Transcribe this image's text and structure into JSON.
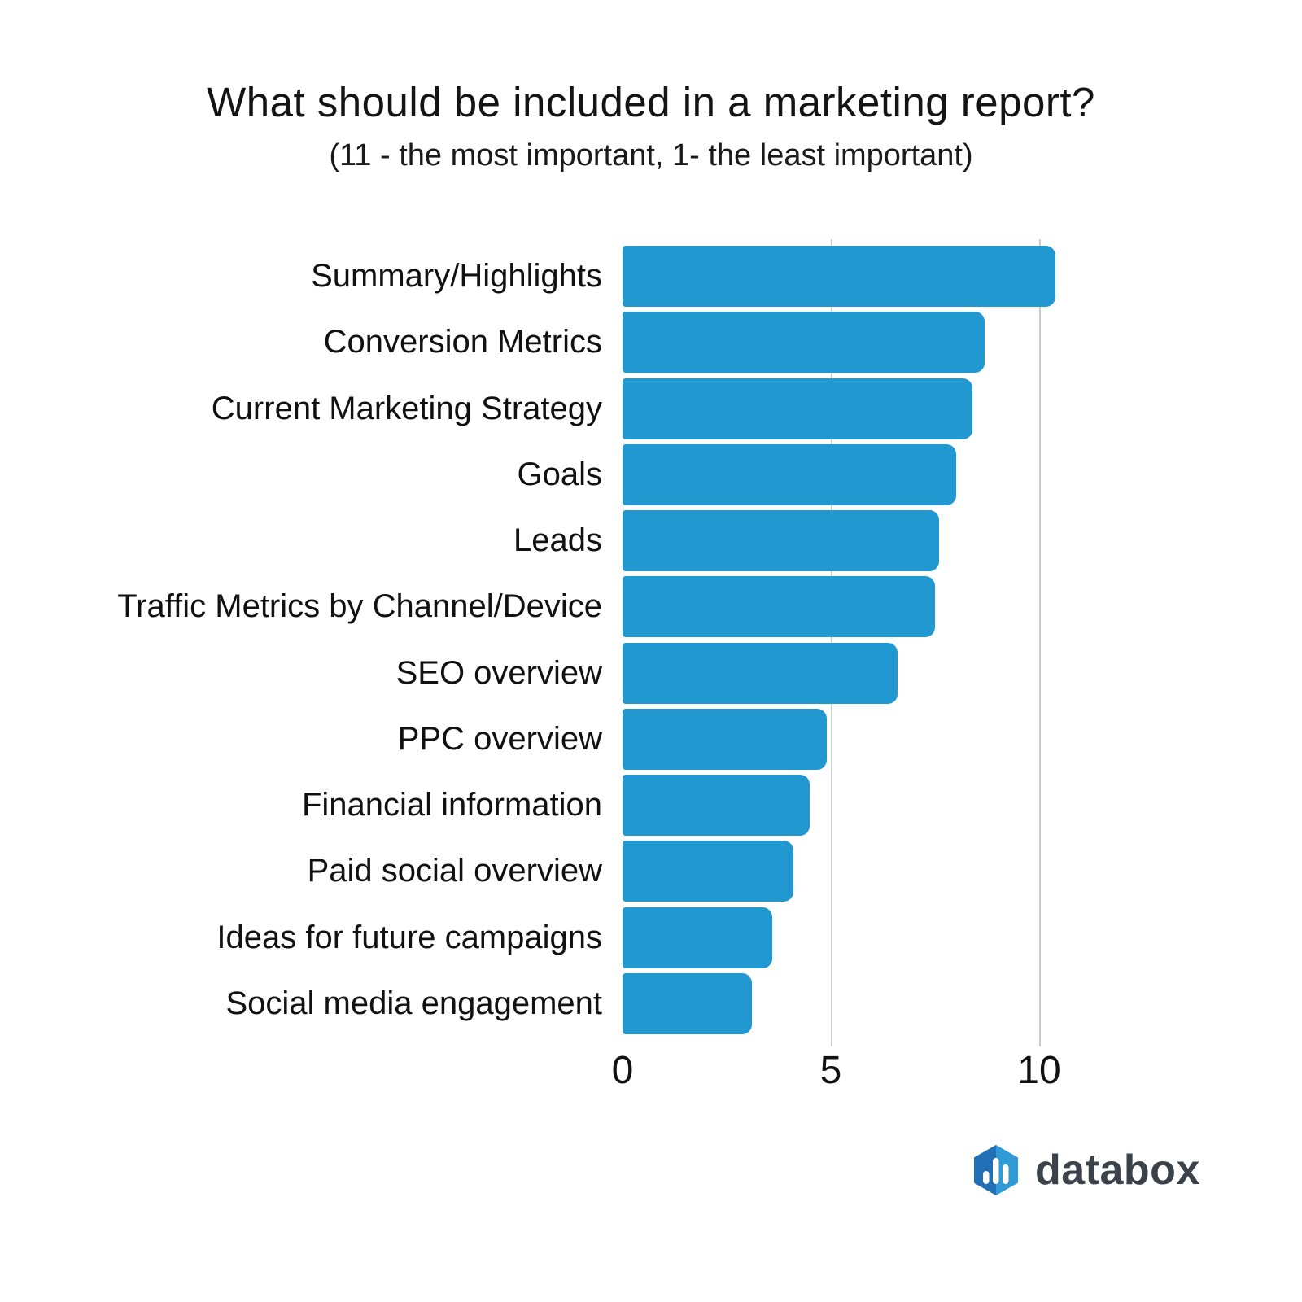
{
  "chart": {
    "title": "What should be included in a marketing report?",
    "subtitle": "(11 - the most important, 1- the least important)"
  },
  "chart_data": {
    "type": "bar",
    "orientation": "horizontal",
    "title": "What should be included in a marketing report?",
    "subtitle": "(11 - the most important, 1- the least important)",
    "categories": [
      "Summary/Highlights",
      "Conversion Metrics",
      "Current Marketing Strategy",
      "Goals",
      "Leads",
      "Traffic Metrics by Channel/Device",
      "SEO overview",
      "PPC overview",
      "Financial information",
      "Paid social overview",
      "Ideas for future campaigns",
      "Social media engagement"
    ],
    "values": [
      10.4,
      8.7,
      8.4,
      8.0,
      7.6,
      7.5,
      6.6,
      4.9,
      4.5,
      4.1,
      3.6,
      3.1
    ],
    "xlim": [
      0,
      12.4
    ],
    "x_ticks": [
      0,
      5,
      10
    ],
    "x_tick_labels": [
      "0",
      "5",
      "10"
    ],
    "grid": "vertical gridlines at x=5 and x=10 only",
    "legend": "none",
    "bar_color": "#2198d0",
    "gridline_color": "#cccccc",
    "label_color": "#111111"
  },
  "logo": {
    "text": "databox",
    "text_color": "#3b424a",
    "hex_dark": "#216fb4",
    "hex_light": "#2f9ad6",
    "bars_color": "#ffffff",
    "icon": "databox-hexagon-bars-icon"
  }
}
